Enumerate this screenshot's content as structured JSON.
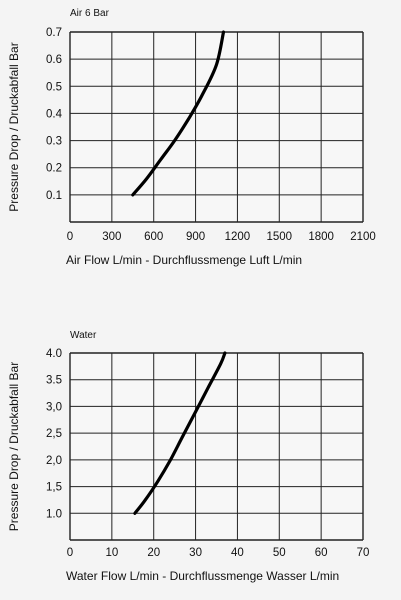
{
  "chart_data": [
    {
      "type": "line",
      "title": "Air 6 Bar",
      "xlabel": "Air Flow L/min - Durchflussmenge  Luft L/min",
      "ylabel": "Pressure Drop / Druckabfall Bar",
      "xlim": [
        0,
        2100
      ],
      "ylim": [
        0,
        0.7
      ],
      "x_ticks": [
        "0",
        "300",
        "600",
        "900",
        "1200",
        "1500",
        "1800",
        "2100"
      ],
      "y_ticks": [
        "0.1",
        "0.2",
        "0.3",
        "0.4",
        "0.5",
        "0.6",
        "0.7"
      ],
      "grid": true,
      "series": [
        {
          "x": [
            450,
            550,
            650,
            750,
            850,
            950,
            1050,
            1100
          ],
          "y": [
            0.1,
            0.16,
            0.23,
            0.3,
            0.38,
            0.47,
            0.58,
            0.7
          ]
        }
      ],
      "line_color": "#000000"
    },
    {
      "type": "line",
      "title": "Water",
      "xlabel": "Water Flow L/min - Durchflussmenge  Wasser L/min",
      "ylabel": "Pressure Drop / Druckabfall Bar",
      "xlim": [
        0,
        70
      ],
      "ylim": [
        0.5,
        4.0
      ],
      "x_ticks": [
        "0",
        "10",
        "20",
        "30",
        "40",
        "50",
        "60",
        "70"
      ],
      "y_ticks": [
        "1.0",
        "1,5",
        "2,0",
        "2,5",
        "3,0",
        "3.5",
        "4.0"
      ],
      "grid": true,
      "series": [
        {
          "x": [
            15.5,
            18,
            21,
            24,
            27,
            30,
            33,
            36,
            37
          ],
          "y": [
            1.0,
            1.25,
            1.6,
            2.0,
            2.45,
            2.9,
            3.35,
            3.8,
            4.0
          ]
        }
      ],
      "line_color": "#000000"
    }
  ]
}
